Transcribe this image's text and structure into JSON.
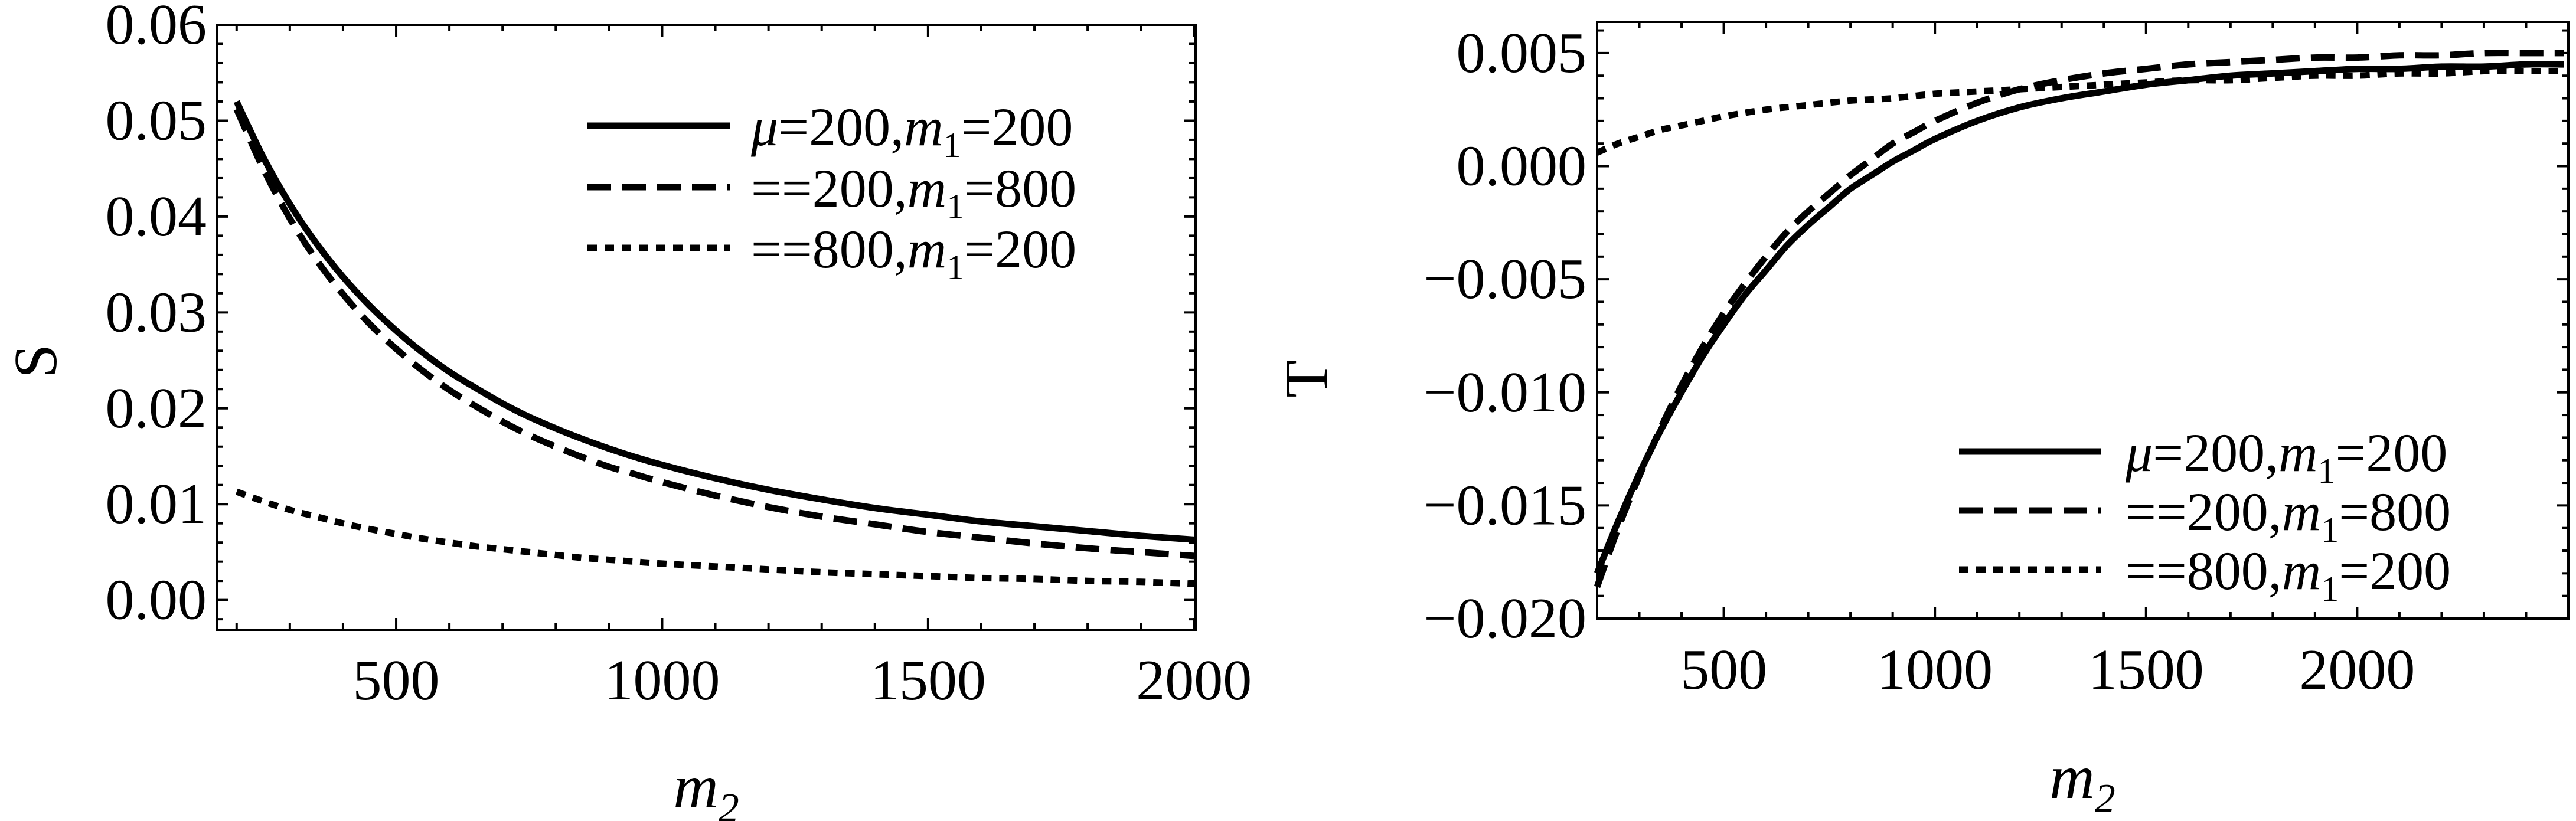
{
  "figure": {
    "background": "#ffffff",
    "ink": "#000000",
    "description": "Two-panel line figure: electroweak oblique parameters S and T versus m2"
  },
  "chart_data": [
    {
      "id": "s-plot",
      "type": "line",
      "title": "",
      "xlabel": {
        "segments": [
          {
            "t": "m",
            "italic": true
          },
          {
            "t": "2",
            "sub": true,
            "italic": true
          }
        ]
      },
      "ylabel": "S",
      "xlim": [
        162.5,
        2003
      ],
      "ylim": [
        -0.0031,
        0.06
      ],
      "grid": false,
      "legend_position": "top-right-inside",
      "xticks": {
        "major": [
          {
            "v": 500,
            "label": "500"
          },
          {
            "v": 1000,
            "label": "1000"
          },
          {
            "v": 1500,
            "label": "1500"
          },
          {
            "v": 2000,
            "label": "2000"
          }
        ],
        "minor": {
          "start": 200,
          "end": 2000,
          "step": 100
        }
      },
      "yticks": {
        "major": [
          {
            "v": 0.0,
            "label": "0.00"
          },
          {
            "v": 0.01,
            "label": "0.01"
          },
          {
            "v": 0.02,
            "label": "0.02"
          },
          {
            "v": 0.03,
            "label": "0.03"
          },
          {
            "v": 0.04,
            "label": "0.04"
          },
          {
            "v": 0.05,
            "label": "0.05"
          },
          {
            "v": 0.06,
            "label": "0.06"
          }
        ],
        "minor": {
          "start": -0.002,
          "end": 0.058,
          "step": 0.002
        }
      },
      "legend": [
        {
          "style": "solid",
          "segments": [
            {
              "t": "μ",
              "italic": true
            },
            {
              "t": "=200,"
            },
            {
              "t": "m",
              "italic": true
            },
            {
              "t": "1",
              "sub": true
            },
            {
              "t": "=200"
            }
          ]
        },
        {
          "style": "dashed",
          "segments": [
            {
              "t": "==200,"
            },
            {
              "t": "m",
              "italic": true
            },
            {
              "t": "1",
              "sub": true
            },
            {
              "t": "=800"
            }
          ]
        },
        {
          "style": "dotted",
          "segments": [
            {
              "t": "==800,"
            },
            {
              "t": "m",
              "italic": true
            },
            {
              "t": "1",
              "sub": true
            },
            {
              "t": "=200"
            }
          ]
        }
      ],
      "series": [
        {
          "name": "mu=200, m1=200",
          "style": "solid",
          "points": [
            [
              200,
              0.052
            ],
            [
              250,
              0.0462
            ],
            [
              300,
              0.0413
            ],
            [
              350,
              0.0372
            ],
            [
              400,
              0.0337
            ],
            [
              450,
              0.0307
            ],
            [
              500,
              0.0281
            ],
            [
              550,
              0.0258
            ],
            [
              600,
              0.0238
            ],
            [
              650,
              0.0221
            ],
            [
              700,
              0.0205
            ],
            [
              750,
              0.0191
            ],
            [
              800,
              0.0179
            ],
            [
              850,
              0.0168
            ],
            [
              900,
              0.0158
            ],
            [
              950,
              0.0149
            ],
            [
              1000,
              0.0141
            ],
            [
              1100,
              0.0127
            ],
            [
              1200,
              0.0115
            ],
            [
              1300,
              0.0105
            ],
            [
              1400,
              0.0096
            ],
            [
              1500,
              0.0089
            ],
            [
              1600,
              0.0082
            ],
            [
              1700,
              0.0077
            ],
            [
              1800,
              0.0072
            ],
            [
              1900,
              0.0067
            ],
            [
              2000,
              0.0063
            ]
          ]
        },
        {
          "name": "mu=200, m1=800",
          "style": "dashed",
          "points": [
            [
              200,
              0.0512
            ],
            [
              250,
              0.045
            ],
            [
              300,
              0.0398
            ],
            [
              350,
              0.0355
            ],
            [
              400,
              0.0319
            ],
            [
              450,
              0.0288
            ],
            [
              500,
              0.0262
            ],
            [
              550,
              0.0239
            ],
            [
              600,
              0.0219
            ],
            [
              650,
              0.0202
            ],
            [
              700,
              0.0186
            ],
            [
              750,
              0.0172
            ],
            [
              800,
              0.016
            ],
            [
              850,
              0.0149
            ],
            [
              900,
              0.0139
            ],
            [
              950,
              0.0131
            ],
            [
              1000,
              0.0123
            ],
            [
              1100,
              0.0109
            ],
            [
              1200,
              0.0097
            ],
            [
              1300,
              0.0087
            ],
            [
              1400,
              0.0079
            ],
            [
              1500,
              0.0071
            ],
            [
              1600,
              0.0065
            ],
            [
              1700,
              0.0059
            ],
            [
              1800,
              0.0054
            ],
            [
              1900,
              0.005
            ],
            [
              2000,
              0.0046
            ]
          ]
        },
        {
          "name": "mu=800, m1=200",
          "style": "dotted",
          "points": [
            [
              200,
              0.0113
            ],
            [
              250,
              0.0103
            ],
            [
              300,
              0.0094
            ],
            [
              350,
              0.0087
            ],
            [
              400,
              0.008
            ],
            [
              450,
              0.0074
            ],
            [
              500,
              0.0069
            ],
            [
              550,
              0.0064
            ],
            [
              600,
              0.006
            ],
            [
              650,
              0.0056
            ],
            [
              700,
              0.0053
            ],
            [
              750,
              0.005
            ],
            [
              800,
              0.0047
            ],
            [
              850,
              0.0044
            ],
            [
              900,
              0.0042
            ],
            [
              950,
              0.004
            ],
            [
              1000,
              0.0038
            ],
            [
              1100,
              0.0035
            ],
            [
              1200,
              0.0032
            ],
            [
              1300,
              0.0029
            ],
            [
              1400,
              0.0027
            ],
            [
              1500,
              0.0025
            ],
            [
              1600,
              0.0023
            ],
            [
              1700,
              0.0022
            ],
            [
              1800,
              0.002
            ],
            [
              1900,
              0.0019
            ],
            [
              2000,
              0.0017
            ]
          ]
        }
      ]
    },
    {
      "id": "t-plot",
      "type": "line",
      "title": "",
      "xlabel": {
        "segments": [
          {
            "t": "m",
            "italic": true
          },
          {
            "t": "2",
            "sub": true,
            "italic": true
          }
        ]
      },
      "ylabel": "T",
      "xlim": [
        200,
        2500
      ],
      "ylim": [
        -0.02,
        0.00638
      ],
      "grid": false,
      "legend_position": "bottom-right-inside",
      "xticks": {
        "major": [
          {
            "v": 500,
            "label": "500"
          },
          {
            "v": 1000,
            "label": "1000"
          },
          {
            "v": 1500,
            "label": "1500"
          },
          {
            "v": 2000,
            "label": "2000"
          }
        ],
        "minor": {
          "start": 300,
          "end": 2400,
          "step": 100
        }
      },
      "yticks": {
        "major": [
          {
            "v": 0.005,
            "label": "0.005"
          },
          {
            "v": 0.0,
            "label": "0.000"
          },
          {
            "v": -0.005,
            "label": "−0.005"
          },
          {
            "v": -0.01,
            "label": "−0.010"
          },
          {
            "v": -0.015,
            "label": "−0.015"
          },
          {
            "v": -0.02,
            "label": "−0.020"
          }
        ],
        "minor": {
          "start": -0.019,
          "end": 0.006,
          "step": 0.001
        }
      },
      "legend": [
        {
          "style": "solid",
          "segments": [
            {
              "t": "μ",
              "italic": true
            },
            {
              "t": "=200,"
            },
            {
              "t": "m",
              "italic": true
            },
            {
              "t": "1",
              "sub": true
            },
            {
              "t": "=200"
            }
          ]
        },
        {
          "style": "dashed",
          "segments": [
            {
              "t": "==200,"
            },
            {
              "t": "m",
              "italic": true
            },
            {
              "t": "1",
              "sub": true
            },
            {
              "t": "=800"
            }
          ]
        },
        {
          "style": "dotted",
          "segments": [
            {
              "t": "==800,"
            },
            {
              "t": "m",
              "italic": true
            },
            {
              "t": "1",
              "sub": true
            },
            {
              "t": "=200"
            }
          ]
        }
      ],
      "series": [
        {
          "name": "mu=200, m1=200",
          "style": "solid",
          "points": [
            [
              200,
              -0.018
            ],
            [
              250,
              -0.0157
            ],
            [
              300,
              -0.0136
            ],
            [
              350,
              -0.0117
            ],
            [
              400,
              -0.01
            ],
            [
              450,
              -0.0084
            ],
            [
              500,
              -0.007
            ],
            [
              550,
              -0.0057
            ],
            [
              600,
              -0.0046
            ],
            [
              650,
              -0.0035
            ],
            [
              700,
              -0.0026
            ],
            [
              750,
              -0.0018
            ],
            [
              800,
              -0.001
            ],
            [
              850,
              -0.0004
            ],
            [
              900,
              0.0002
            ],
            [
              950,
              0.0007
            ],
            [
              1000,
              0.0012
            ],
            [
              1100,
              0.002
            ],
            [
              1200,
              0.0026
            ],
            [
              1300,
              0.003
            ],
            [
              1400,
              0.0033
            ],
            [
              1500,
              0.0036
            ],
            [
              1600,
              0.0038
            ],
            [
              1700,
              0.004
            ],
            [
              1800,
              0.0041
            ],
            [
              1900,
              0.0042
            ],
            [
              2000,
              0.0043
            ],
            [
              2100,
              0.0043
            ],
            [
              2200,
              0.0044
            ],
            [
              2300,
              0.0044
            ],
            [
              2400,
              0.0045
            ],
            [
              2490,
              0.0045
            ]
          ]
        },
        {
          "name": "mu=200, m1=800",
          "style": "dashed",
          "points": [
            [
              200,
              -0.0186
            ],
            [
              250,
              -0.016
            ],
            [
              300,
              -0.0137
            ],
            [
              350,
              -0.0116
            ],
            [
              400,
              -0.0097
            ],
            [
              450,
              -0.008
            ],
            [
              500,
              -0.0065
            ],
            [
              550,
              -0.0052
            ],
            [
              600,
              -0.004
            ],
            [
              650,
              -0.0029
            ],
            [
              700,
              -0.002
            ],
            [
              750,
              -0.0012
            ],
            [
              800,
              -0.0004
            ],
            [
              850,
              0.0003
            ],
            [
              900,
              0.001
            ],
            [
              950,
              0.0015
            ],
            [
              1000,
              0.002
            ],
            [
              1100,
              0.0028
            ],
            [
              1200,
              0.0034
            ],
            [
              1300,
              0.0038
            ],
            [
              1400,
              0.0041
            ],
            [
              1500,
              0.0043
            ],
            [
              1600,
              0.0045
            ],
            [
              1700,
              0.0046
            ],
            [
              1800,
              0.0047
            ],
            [
              1900,
              0.0048
            ],
            [
              2000,
              0.0048
            ],
            [
              2100,
              0.0049
            ],
            [
              2200,
              0.0049
            ],
            [
              2300,
              0.005
            ],
            [
              2400,
              0.005
            ],
            [
              2490,
              0.005
            ]
          ]
        },
        {
          "name": "mu=800, m1=200",
          "style": "dotted",
          "points": [
            [
              200,
              0.0006
            ],
            [
              250,
              0.001
            ],
            [
              300,
              0.0013
            ],
            [
              350,
              0.0016
            ],
            [
              400,
              0.0018
            ],
            [
              450,
              0.002
            ],
            [
              500,
              0.0022
            ],
            [
              600,
              0.0025
            ],
            [
              700,
              0.0027
            ],
            [
              800,
              0.0029
            ],
            [
              900,
              0.003
            ],
            [
              1000,
              0.0032
            ],
            [
              1100,
              0.0033
            ],
            [
              1200,
              0.0034
            ],
            [
              1300,
              0.0035
            ],
            [
              1400,
              0.0036
            ],
            [
              1500,
              0.0037
            ],
            [
              1600,
              0.0038
            ],
            [
              1700,
              0.0038
            ],
            [
              1800,
              0.0039
            ],
            [
              1900,
              0.004
            ],
            [
              2000,
              0.004
            ],
            [
              2100,
              0.0041
            ],
            [
              2200,
              0.0041
            ],
            [
              2300,
              0.0042
            ],
            [
              2400,
              0.0042
            ],
            [
              2490,
              0.0042
            ]
          ]
        }
      ]
    }
  ]
}
